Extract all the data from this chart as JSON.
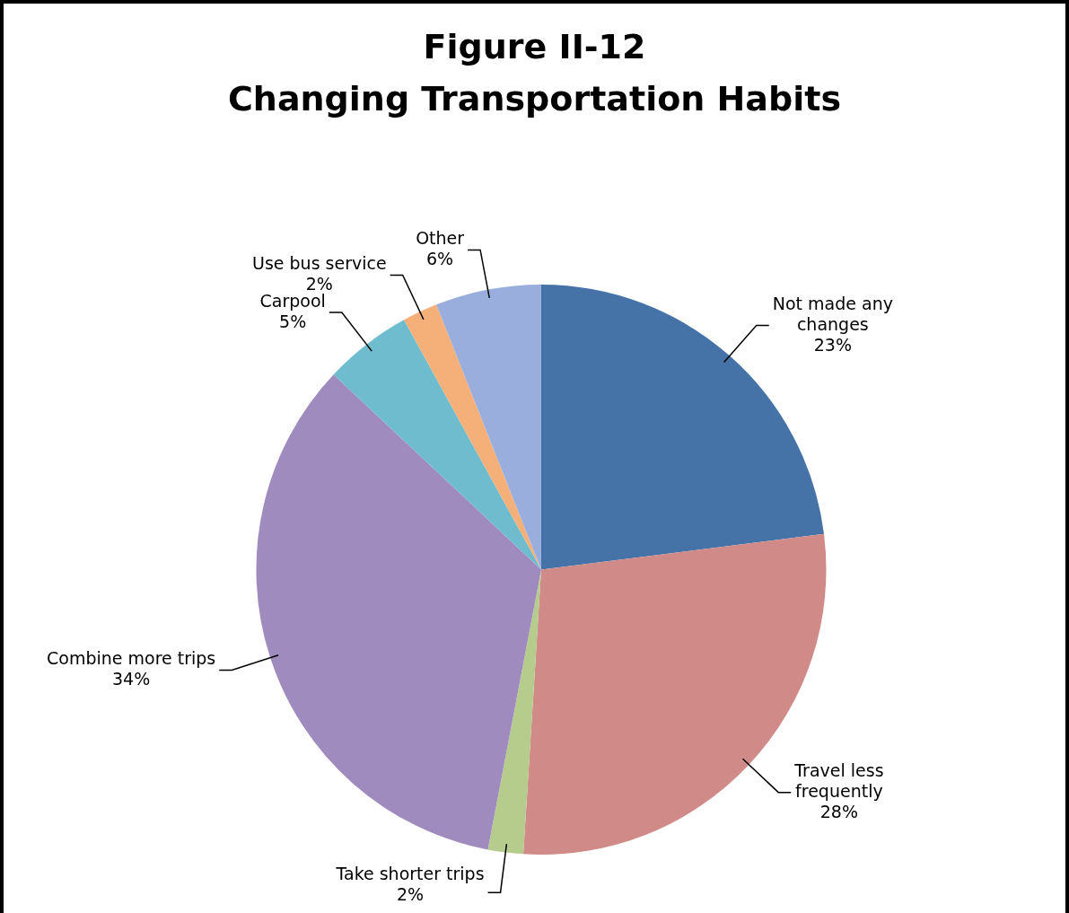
{
  "chart_data": {
    "type": "pie",
    "title": "Figure II-12",
    "subtitle": "Changing Transportation Habits",
    "categories": [
      "Not made any changes",
      "Travel less frequently",
      "Take shorter trips",
      "Combine more trips",
      "Carpool",
      "Use bus service",
      "Other"
    ],
    "values": [
      23,
      28,
      2,
      34,
      5,
      2,
      6
    ],
    "value_labels": [
      "23%",
      "28%",
      "2%",
      "34%",
      "5%",
      "2%",
      "6%"
    ],
    "colors": [
      "#4572a7",
      "#d08a88",
      "#b5cc8c",
      "#a08bbf",
      "#6fbccf",
      "#f5b07a",
      "#9aaede"
    ],
    "legend": false
  }
}
